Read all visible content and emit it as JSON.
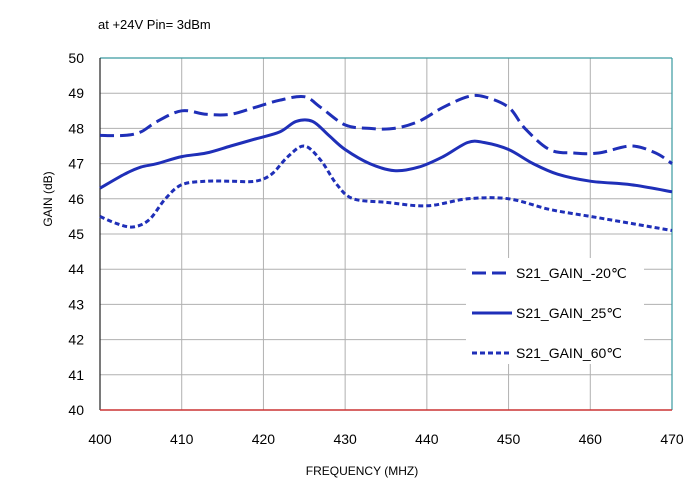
{
  "chart_data": {
    "type": "line",
    "title": "at +24V Pin= 3dBm",
    "xlabel": "FREQUENCY (MHZ)",
    "ylabel": "GAIN (dB)",
    "xlim": [
      400,
      470
    ],
    "ylim": [
      40,
      50
    ],
    "xticks": [
      "400",
      "410",
      "420",
      "430",
      "440",
      "450",
      "460",
      "470"
    ],
    "yticks": [
      "40",
      "41",
      "42",
      "43",
      "44",
      "45",
      "46",
      "47",
      "48",
      "49",
      "50"
    ],
    "grid": true,
    "legend_position": "bottom-right",
    "colors": {
      "series": "#1f2fb8",
      "grid": "#b0b0b0",
      "top_border": "#3a9aa0",
      "bottom_axis": "#cc3333"
    },
    "series": [
      {
        "name": "S21_GAIN_-20℃",
        "dash": "dashed",
        "x": [
          400,
          403,
          405,
          407,
          410,
          413,
          416,
          419,
          422,
          425,
          427,
          430,
          433,
          436,
          439,
          442,
          445,
          447,
          450,
          452,
          455,
          458,
          461,
          465,
          468,
          470
        ],
        "y": [
          47.8,
          47.8,
          47.9,
          48.2,
          48.5,
          48.4,
          48.4,
          48.6,
          48.8,
          48.9,
          48.6,
          48.1,
          48.0,
          48.0,
          48.2,
          48.6,
          48.9,
          48.9,
          48.6,
          48.0,
          47.4,
          47.3,
          47.3,
          47.5,
          47.3,
          47.0
        ]
      },
      {
        "name": "S21_GAIN_25℃",
        "dash": "solid",
        "x": [
          400,
          403,
          405,
          407,
          410,
          413,
          416,
          419,
          422,
          424,
          426,
          428,
          430,
          433,
          436,
          439,
          442,
          445,
          447,
          450,
          453,
          456,
          460,
          465,
          470
        ],
        "y": [
          46.3,
          46.7,
          46.9,
          47.0,
          47.2,
          47.3,
          47.5,
          47.7,
          47.9,
          48.2,
          48.2,
          47.8,
          47.4,
          47.0,
          46.8,
          46.9,
          47.2,
          47.6,
          47.6,
          47.4,
          47.0,
          46.7,
          46.5,
          46.4,
          46.2
        ]
      },
      {
        "name": "S21_GAIN_60℃",
        "dash": "dotted",
        "x": [
          400,
          402,
          404,
          406,
          408,
          410,
          413,
          416,
          419,
          421,
          423,
          425,
          427,
          429,
          431,
          435,
          440,
          445,
          450,
          455,
          460,
          465,
          470
        ],
        "y": [
          45.5,
          45.3,
          45.2,
          45.4,
          46.0,
          46.4,
          46.5,
          46.5,
          46.5,
          46.7,
          47.2,
          47.5,
          47.1,
          46.4,
          46.0,
          45.9,
          45.8,
          46.0,
          46.0,
          45.7,
          45.5,
          45.3,
          45.1
        ]
      }
    ]
  }
}
